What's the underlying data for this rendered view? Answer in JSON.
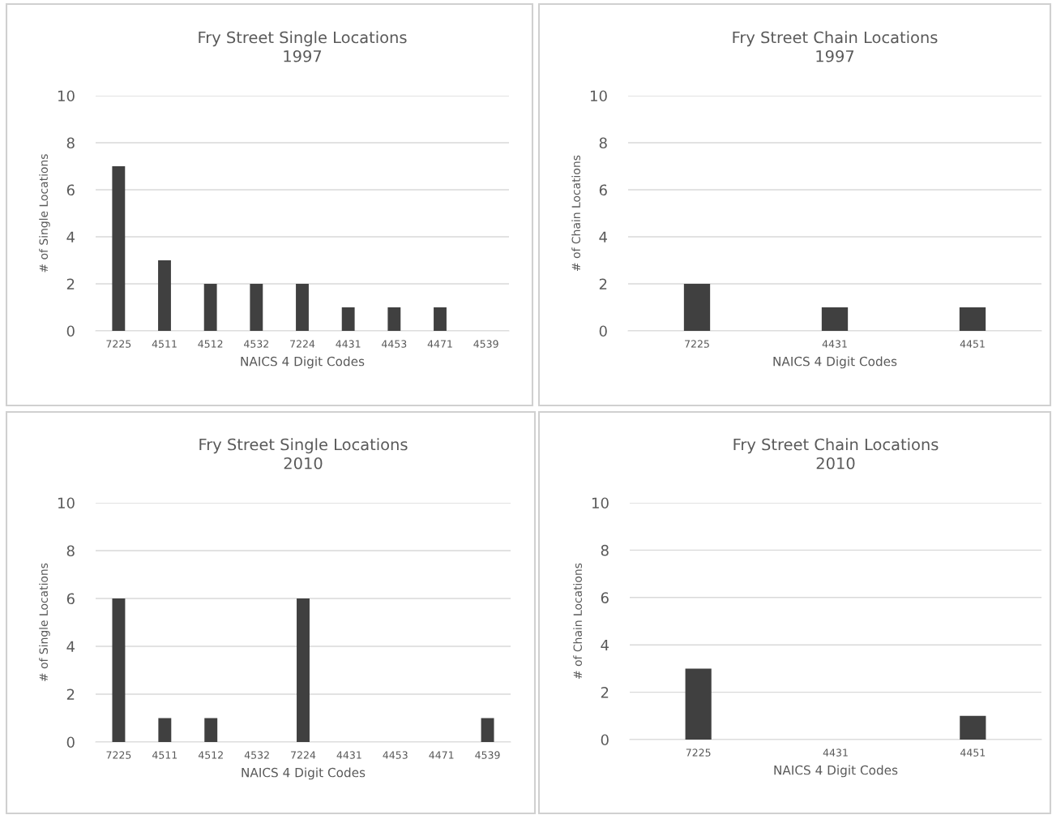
{
  "chart_data": [
    {
      "type": "bar",
      "title": "Fry Street Single Locations\n1997",
      "xlabel": "NAICS 4 Digit Codes",
      "ylabel": "# of Single Locations",
      "categories": [
        "7225",
        "4511",
        "4512",
        "4532",
        "7224",
        "4431",
        "4453",
        "4471",
        "4539"
      ],
      "values": [
        7,
        3,
        2,
        2,
        2,
        1,
        1,
        1,
        0
      ],
      "color": "#404040",
      "ylim": [
        0,
        10
      ],
      "yticks": [
        0,
        2,
        4,
        6,
        8,
        10
      ],
      "grid": "y",
      "legend": false
    },
    {
      "type": "bar",
      "title": "Fry Street Chain Locations\n1997",
      "xlabel": "NAICS 4 Digit Codes",
      "ylabel": "# of Chain Locations",
      "categories": [
        "7225",
        "4431",
        "4451"
      ],
      "values": [
        2,
        1,
        1
      ],
      "color": "#404040",
      "ylim": [
        0,
        10
      ],
      "yticks": [
        0,
        2,
        4,
        6,
        8,
        10
      ],
      "grid": "y",
      "legend": false
    },
    {
      "type": "bar",
      "title": "Fry Street Single Locations\n2010",
      "xlabel": "NAICS 4 Digit Codes",
      "ylabel": "# of Single Locations",
      "categories": [
        "7225",
        "4511",
        "4512",
        "4532",
        "7224",
        "4431",
        "4453",
        "4471",
        "4539"
      ],
      "values": [
        6,
        1,
        1,
        0,
        6,
        0,
        0,
        0,
        1
      ],
      "color": "#404040",
      "ylim": [
        0,
        10
      ],
      "yticks": [
        0,
        2,
        4,
        6,
        8,
        10
      ],
      "grid": "y",
      "legend": false
    },
    {
      "type": "bar",
      "title": "Fry Street Chain Locations\n2010",
      "xlabel": "NAICS 4 Digit Codes",
      "ylabel": "# of Chain Locations",
      "categories": [
        "7225",
        "4431",
        "4451"
      ],
      "values": [
        3,
        0,
        1
      ],
      "color": "#404040",
      "ylim": [
        0,
        10
      ],
      "yticks": [
        0,
        2,
        4,
        6,
        8,
        10
      ],
      "grid": "y",
      "legend": false
    }
  ]
}
